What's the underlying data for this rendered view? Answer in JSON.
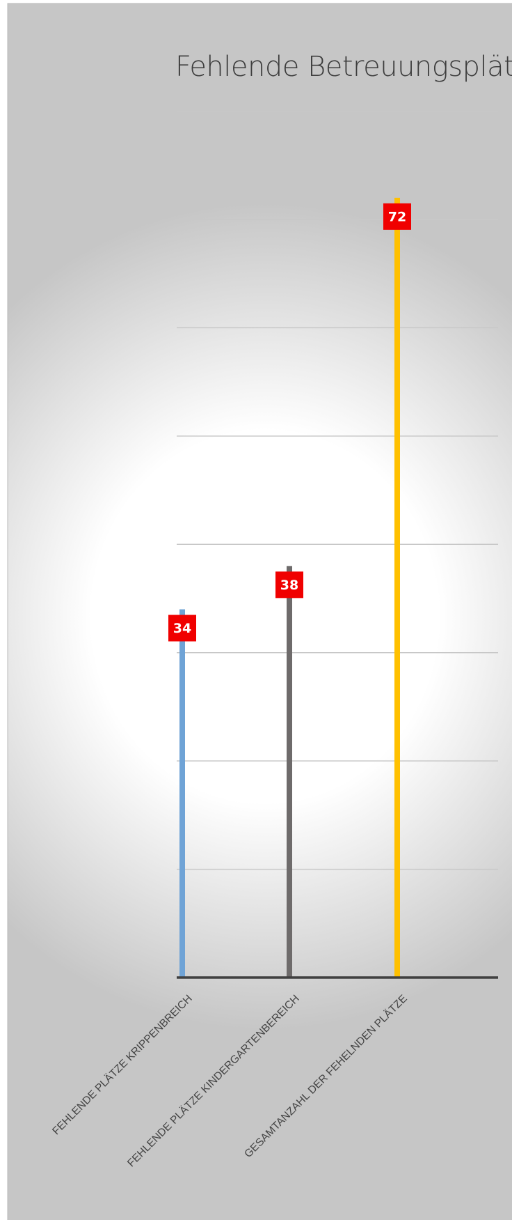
{
  "chart_data": {
    "type": "bar",
    "title": "Fehlende Betreuungsplätze",
    "categories": [
      "FEHLENDE PLÄTZE KRIPPENBREICH",
      "FEHLENDE PLÄTZE KINDERGARTENBEREICH",
      "GESAMTANZAHL DER FEHELNDEN PLÄTZE"
    ],
    "values": [
      34,
      38,
      72
    ],
    "colors": [
      "#6fa3d6",
      "#6e6b6b",
      "#ffc000"
    ],
    "ylim": [
      0,
      80
    ],
    "yticks": [
      0,
      10,
      20,
      30,
      40,
      50,
      60,
      70,
      80
    ],
    "grid": true
  }
}
